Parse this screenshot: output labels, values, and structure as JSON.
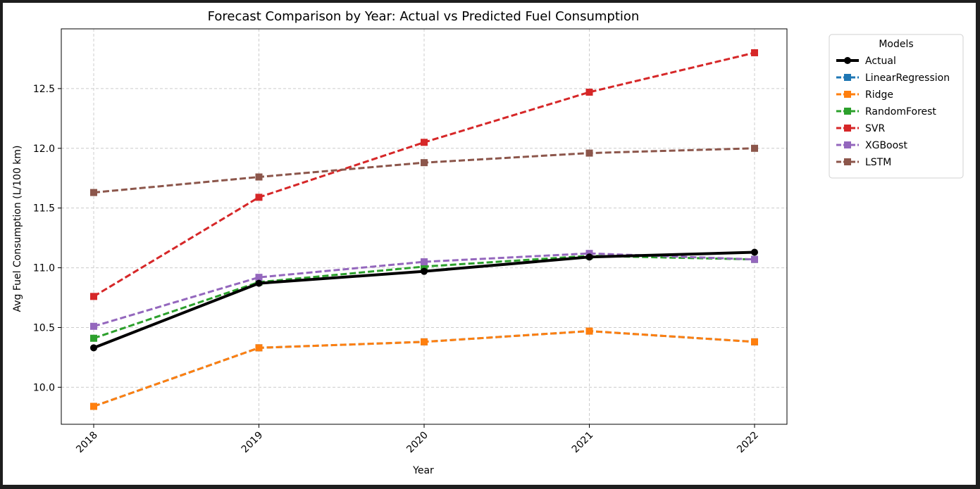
{
  "chart_data": {
    "type": "line",
    "title": "Forecast Comparison by Year: Actual vs Predicted Fuel Consumption",
    "xlabel": "Year",
    "ylabel": "Avg Fuel Consumption (L/100 km)",
    "x": [
      "2018",
      "2019",
      "2020",
      "2021",
      "2022"
    ],
    "ylim": [
      9.69,
      13.0
    ],
    "yticks": [
      10.0,
      10.5,
      11.0,
      11.5,
      12.0,
      12.5
    ],
    "ytick_labels": [
      "10.0",
      "10.5",
      "11.0",
      "11.5",
      "12.0",
      "12.5"
    ],
    "grid": true,
    "legend": {
      "title": "Models",
      "placement": "outside-top-right"
    },
    "series": [
      {
        "name": "Actual",
        "color": "#000000",
        "style": "solid",
        "marker": "circle",
        "values": [
          10.33,
          10.87,
          10.97,
          11.09,
          11.13
        ]
      },
      {
        "name": "LinearRegression",
        "color": "#1f77b4",
        "style": "dashed",
        "marker": "square",
        "values": [
          9.84,
          10.33,
          10.38,
          10.47,
          10.38
        ]
      },
      {
        "name": "Ridge",
        "color": "#ff7f0e",
        "style": "dashed",
        "marker": "square",
        "values": [
          9.84,
          10.33,
          10.38,
          10.47,
          10.38
        ]
      },
      {
        "name": "RandomForest",
        "color": "#2ca02c",
        "style": "dashed",
        "marker": "square",
        "values": [
          10.41,
          10.88,
          11.01,
          11.1,
          11.07
        ]
      },
      {
        "name": "SVR",
        "color": "#d62728",
        "style": "dashed",
        "marker": "square",
        "values": [
          10.76,
          11.59,
          12.05,
          12.47,
          12.8
        ]
      },
      {
        "name": "XGBoost",
        "color": "#9467bd",
        "style": "dashed",
        "marker": "square",
        "values": [
          10.51,
          10.92,
          11.05,
          11.12,
          11.07
        ]
      },
      {
        "name": "LSTM",
        "color": "#8c564b",
        "style": "dashed",
        "marker": "square",
        "values": [
          11.63,
          11.76,
          11.88,
          11.96,
          12.0
        ]
      }
    ]
  }
}
